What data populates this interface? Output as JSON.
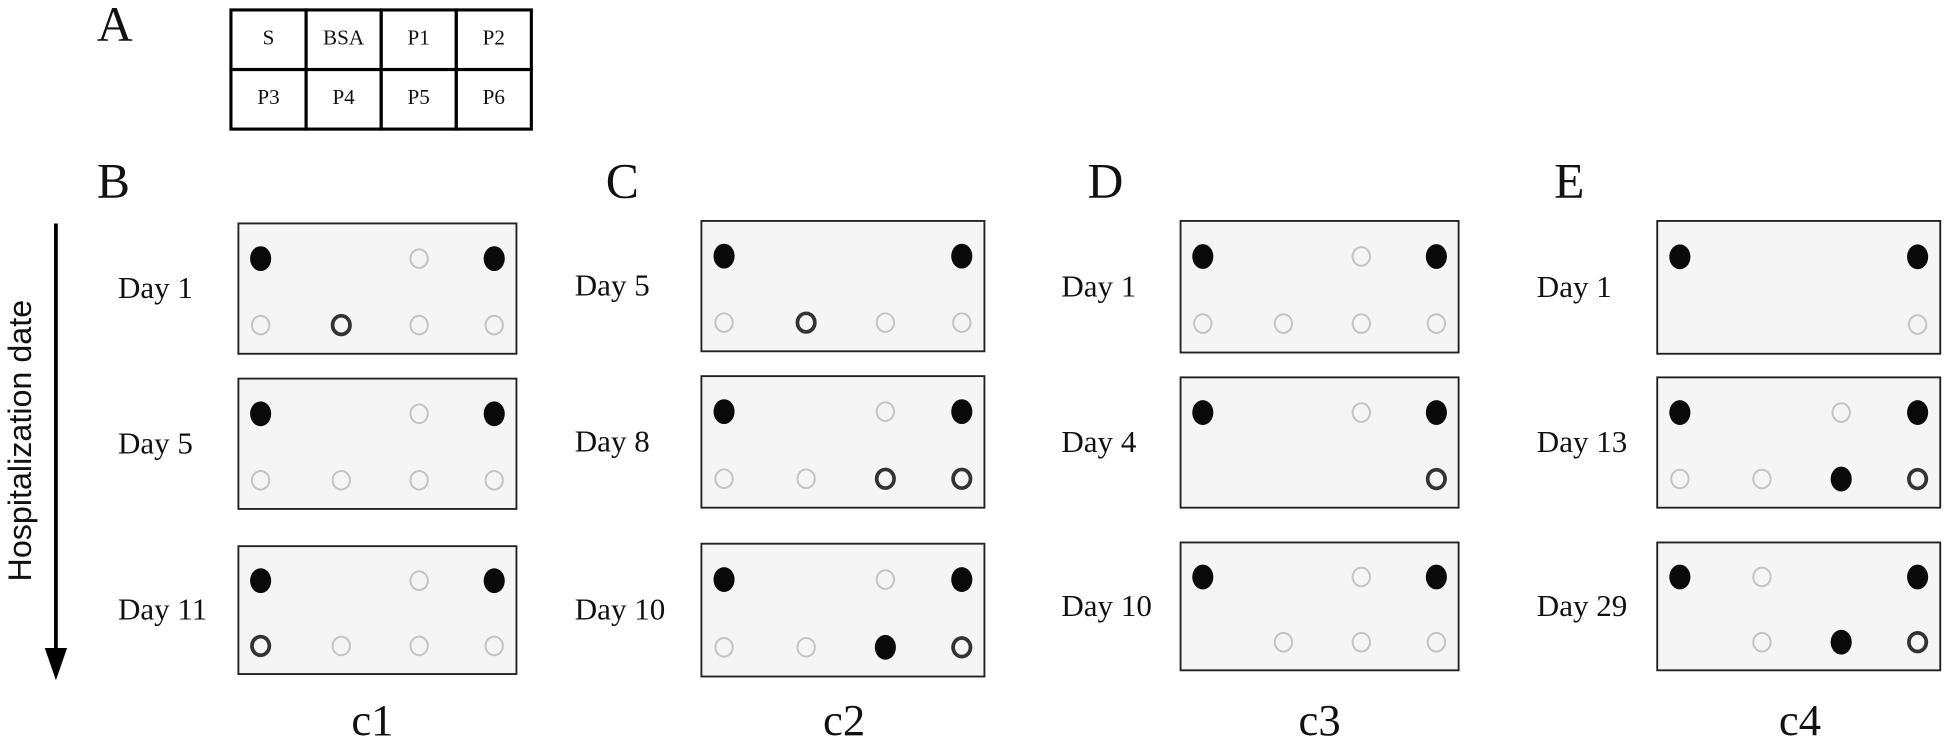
{
  "panel_a": {
    "label": "A",
    "grid": [
      [
        "S",
        "BSA",
        "P1",
        "P2"
      ],
      [
        "P3",
        "P4",
        "P5",
        "P6"
      ]
    ]
  },
  "axis_label": "Hospitalization date",
  "panels": [
    {
      "label": "B",
      "column": "c1",
      "days": [
        "Day 1",
        "Day 5",
        "Day 11"
      ]
    },
    {
      "label": "C",
      "column": "c2",
      "days": [
        "Day 5",
        "Day 8",
        "Day 10"
      ]
    },
    {
      "label": "D",
      "column": "c3",
      "days": [
        "Day 1",
        "Day 4",
        "Day 10"
      ]
    },
    {
      "label": "E",
      "column": "c4",
      "days": [
        "Day 1",
        "Day 13",
        "Day 29"
      ]
    }
  ]
}
